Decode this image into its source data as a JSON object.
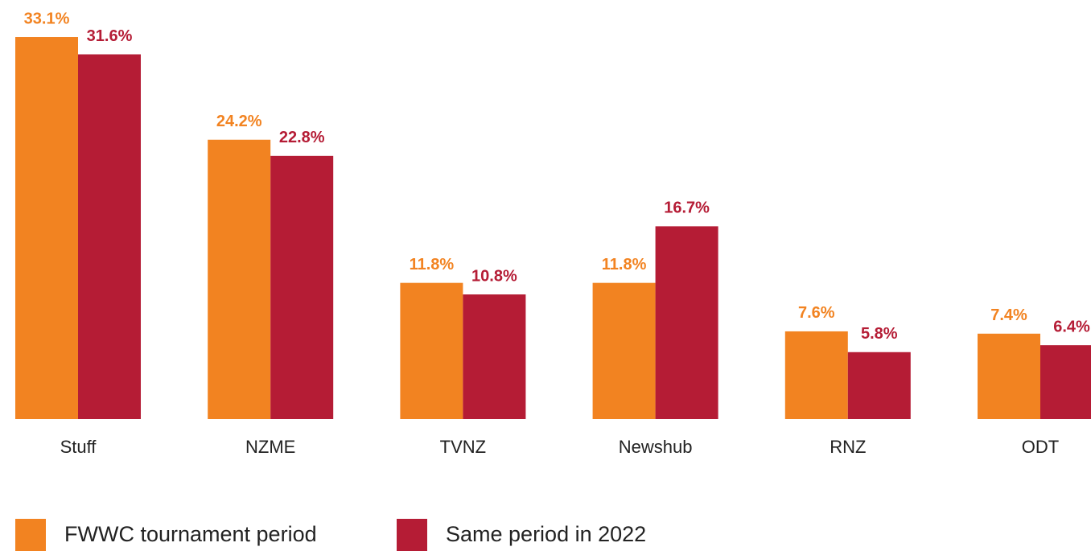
{
  "chart_data": {
    "type": "bar",
    "categories": [
      "Stuff",
      "NZME",
      "TVNZ",
      "Newshub",
      "RNZ",
      "ODT"
    ],
    "series": [
      {
        "name": "FWWC tournament period",
        "color": "#f28321",
        "values": [
          33.1,
          24.2,
          11.8,
          11.8,
          7.6,
          7.4
        ],
        "value_labels": [
          "33.1%",
          "24.2%",
          "11.8%",
          "11.8%",
          "7.6%",
          "7.4%"
        ]
      },
      {
        "name": "Same period in 2022",
        "color": "#b51c35",
        "values": [
          31.6,
          22.8,
          10.8,
          16.7,
          5.8,
          6.4
        ],
        "value_labels": [
          "31.6%",
          "22.8%",
          "10.8%",
          "16.7%",
          "5.8%",
          "6.4%"
        ]
      }
    ],
    "legend": "bottom-left"
  }
}
